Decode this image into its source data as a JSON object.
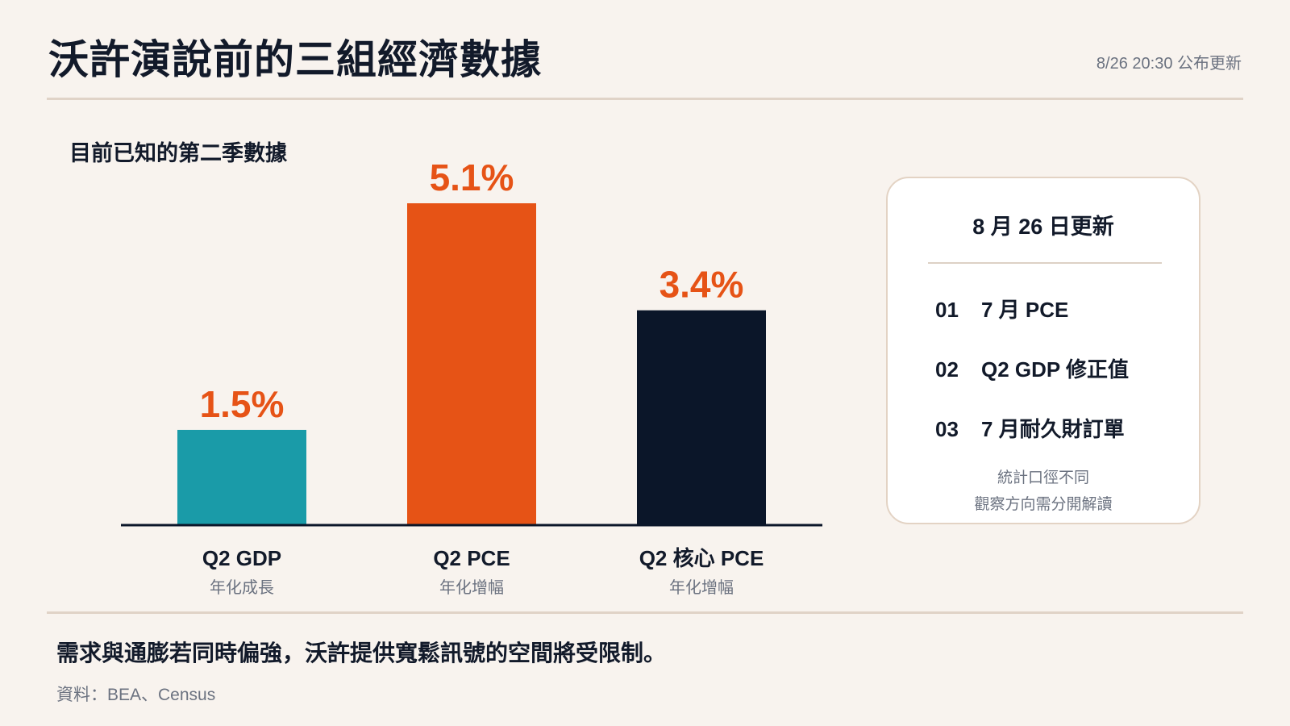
{
  "header": {
    "title": "沃許演說前的三組經濟數據",
    "updated": "8/26 20:30 公布更新"
  },
  "chart_data": {
    "type": "bar",
    "title": "目前已知的第二季數據",
    "categories": [
      "Q2 GDP",
      "Q2 PCE",
      "Q2 核心 PCE"
    ],
    "sublabels": [
      "年化成長",
      "年化增幅",
      "年化增幅"
    ],
    "values": [
      1.5,
      5.1,
      3.4
    ],
    "value_labels": [
      "1.5%",
      "5.1%",
      "3.4%"
    ],
    "bar_colors": [
      "#1a9ba8",
      "#e65316",
      "#0b1629"
    ],
    "label_colors": [
      "#e65316",
      "#e65316",
      "#e65316"
    ],
    "ylim": [
      0,
      5.1
    ],
    "grid": false,
    "legend": "none"
  },
  "panel": {
    "title": "8 月 26 日更新",
    "items": [
      {
        "num": "01",
        "label": "7 月 PCE"
      },
      {
        "num": "02",
        "label": "Q2 GDP 修正值"
      },
      {
        "num": "03",
        "label": "7 月耐久財訂單"
      }
    ],
    "note_line1": "統計口徑不同",
    "note_line2": "觀察方向需分開解讀"
  },
  "footer": {
    "text": "需求與通膨若同時偏強，沃許提供寬鬆訊號的空間將受限制。",
    "source": "資料：BEA、Census"
  }
}
